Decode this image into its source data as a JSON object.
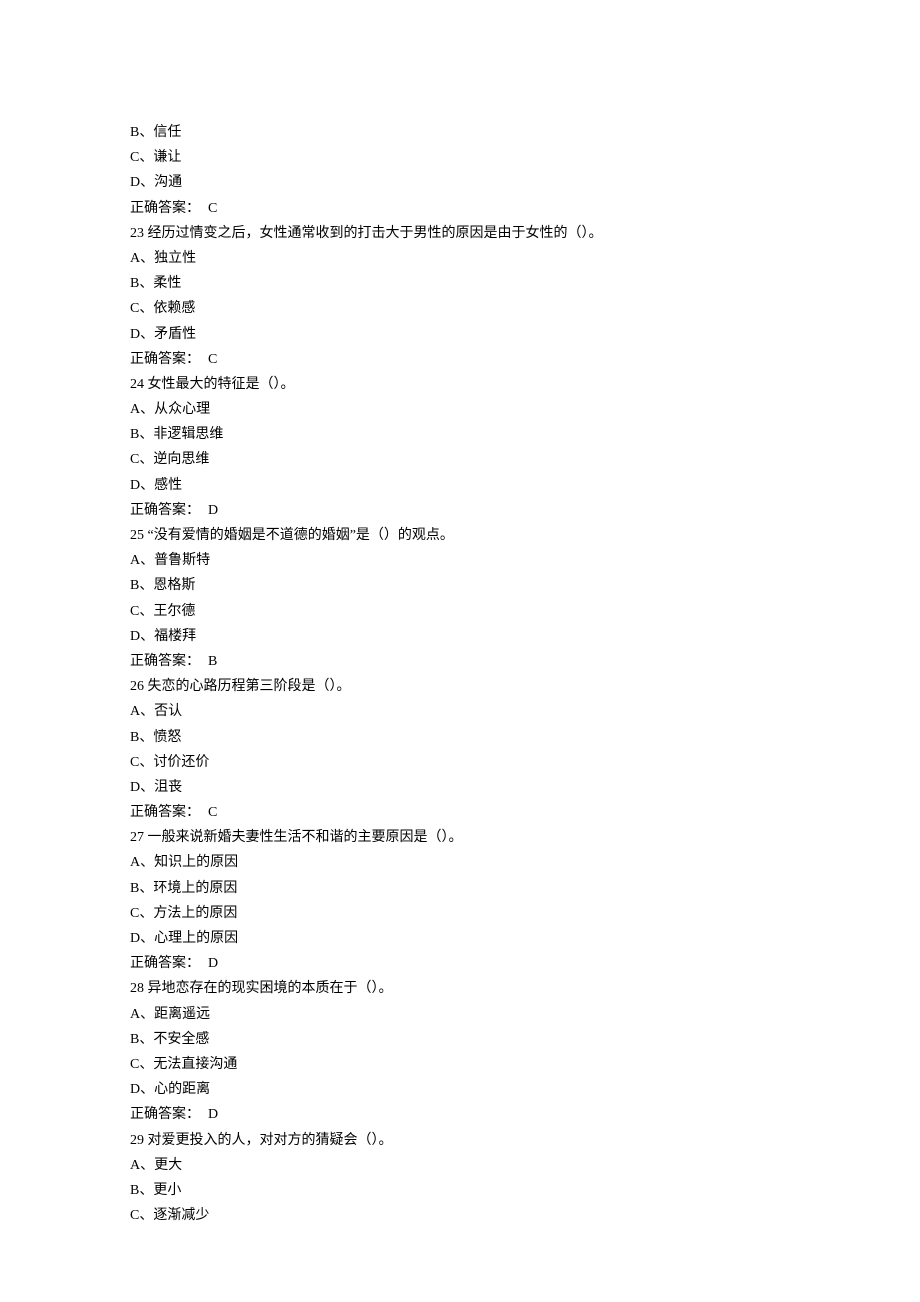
{
  "text_color": "#000000",
  "background_color": "#ffffff",
  "font_size": 14,
  "line_height": 1.8,
  "questions": [
    {
      "partial_options": [
        {
          "key": "B",
          "text": "信任"
        },
        {
          "key": "C",
          "text": "谦让"
        },
        {
          "key": "D",
          "text": "沟通"
        }
      ],
      "answer_label": "正确答案：",
      "answer": "C"
    },
    {
      "number": "23",
      "stem": "经历过情变之后，女性通常收到的打击大于男性的原因是由于女性的（）。",
      "options": [
        {
          "key": "A",
          "text": "独立性"
        },
        {
          "key": "B",
          "text": "柔性"
        },
        {
          "key": "C",
          "text": "依赖感"
        },
        {
          "key": "D",
          "text": "矛盾性"
        }
      ],
      "answer_label": "正确答案：",
      "answer": "C"
    },
    {
      "number": "24",
      "stem": "女性最大的特征是（）。",
      "options": [
        {
          "key": "A",
          "text": "从众心理"
        },
        {
          "key": "B",
          "text": "非逻辑思维"
        },
        {
          "key": "C",
          "text": "逆向思维"
        },
        {
          "key": "D",
          "text": "感性"
        }
      ],
      "answer_label": "正确答案：",
      "answer": "D"
    },
    {
      "number": "25",
      "stem": "“没有爱情的婚姻是不道德的婚姻”是（）的观点。",
      "options": [
        {
          "key": "A",
          "text": "普鲁斯特"
        },
        {
          "key": "B",
          "text": "恩格斯"
        },
        {
          "key": "C",
          "text": "王尔德"
        },
        {
          "key": "D",
          "text": "福楼拜"
        }
      ],
      "answer_label": "正确答案：",
      "answer": "B"
    },
    {
      "number": "26",
      "stem": "失恋的心路历程第三阶段是（）。",
      "options": [
        {
          "key": "A",
          "text": "否认"
        },
        {
          "key": "B",
          "text": "愤怒"
        },
        {
          "key": "C",
          "text": "讨价还价"
        },
        {
          "key": "D",
          "text": "沮丧"
        }
      ],
      "answer_label": "正确答案：",
      "answer": "C"
    },
    {
      "number": "27",
      "stem": "一般来说新婚夫妻性生活不和谐的主要原因是（）。",
      "options": [
        {
          "key": "A",
          "text": "知识上的原因"
        },
        {
          "key": "B",
          "text": "环境上的原因"
        },
        {
          "key": "C",
          "text": "方法上的原因"
        },
        {
          "key": "D",
          "text": "心理上的原因"
        }
      ],
      "answer_label": "正确答案：",
      "answer": "D"
    },
    {
      "number": "28",
      "stem": "异地恋存在的现实困境的本质在于（）。",
      "options": [
        {
          "key": "A",
          "text": "距离遥远"
        },
        {
          "key": "B",
          "text": "不安全感"
        },
        {
          "key": "C",
          "text": "无法直接沟通"
        },
        {
          "key": "D",
          "text": "心的距离"
        }
      ],
      "answer_label": "正确答案：",
      "answer": "D"
    },
    {
      "number": "29",
      "stem": "对爱更投入的人，对对方的猜疑会（）。",
      "options": [
        {
          "key": "A",
          "text": "更大"
        },
        {
          "key": "B",
          "text": "更小"
        },
        {
          "key": "C",
          "text": "逐渐减少"
        }
      ]
    }
  ]
}
